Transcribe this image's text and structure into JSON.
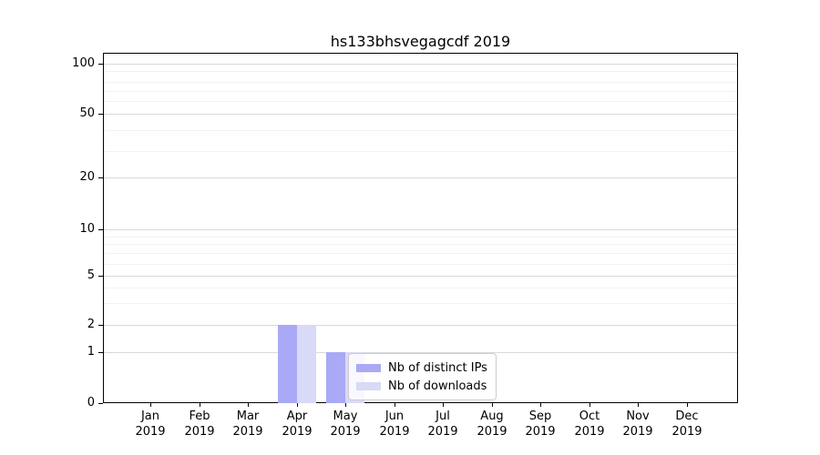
{
  "chart_data": {
    "type": "bar",
    "title": "hs133bhsvegagcdf 2019",
    "categories": [
      {
        "month": "Jan",
        "year": "2019"
      },
      {
        "month": "Feb",
        "year": "2019"
      },
      {
        "month": "Mar",
        "year": "2019"
      },
      {
        "month": "Apr",
        "year": "2019"
      },
      {
        "month": "May",
        "year": "2019"
      },
      {
        "month": "Jun",
        "year": "2019"
      },
      {
        "month": "Jul",
        "year": "2019"
      },
      {
        "month": "Aug",
        "year": "2019"
      },
      {
        "month": "Sep",
        "year": "2019"
      },
      {
        "month": "Oct",
        "year": "2019"
      },
      {
        "month": "Nov",
        "year": "2019"
      },
      {
        "month": "Dec",
        "year": "2019"
      }
    ],
    "series": [
      {
        "name": "Nb of distinct IPs",
        "color": "#a9a9f6",
        "values": [
          0,
          0,
          0,
          2,
          1,
          0,
          0,
          0,
          0,
          0,
          0,
          0
        ]
      },
      {
        "name": "Nb of downloads",
        "color": "#d9d9f8",
        "values": [
          0,
          0,
          0,
          2,
          1,
          0,
          0,
          0,
          0,
          0,
          0,
          0
        ]
      }
    ],
    "y_ticks": [
      0,
      1,
      2,
      5,
      10,
      20,
      50,
      100
    ],
    "y_minor_ticks": [
      3,
      4,
      6,
      7,
      8,
      9,
      30,
      40,
      60,
      70,
      80,
      90
    ],
    "yscale": "log-like with 0 baseline",
    "ylim": [
      0,
      115
    ],
    "xlabel": "",
    "ylabel": "",
    "grid": true,
    "legend": {
      "location": "inside-bottom-center",
      "labels": [
        "Nb of distinct IPs",
        "Nb of downloads"
      ]
    }
  }
}
